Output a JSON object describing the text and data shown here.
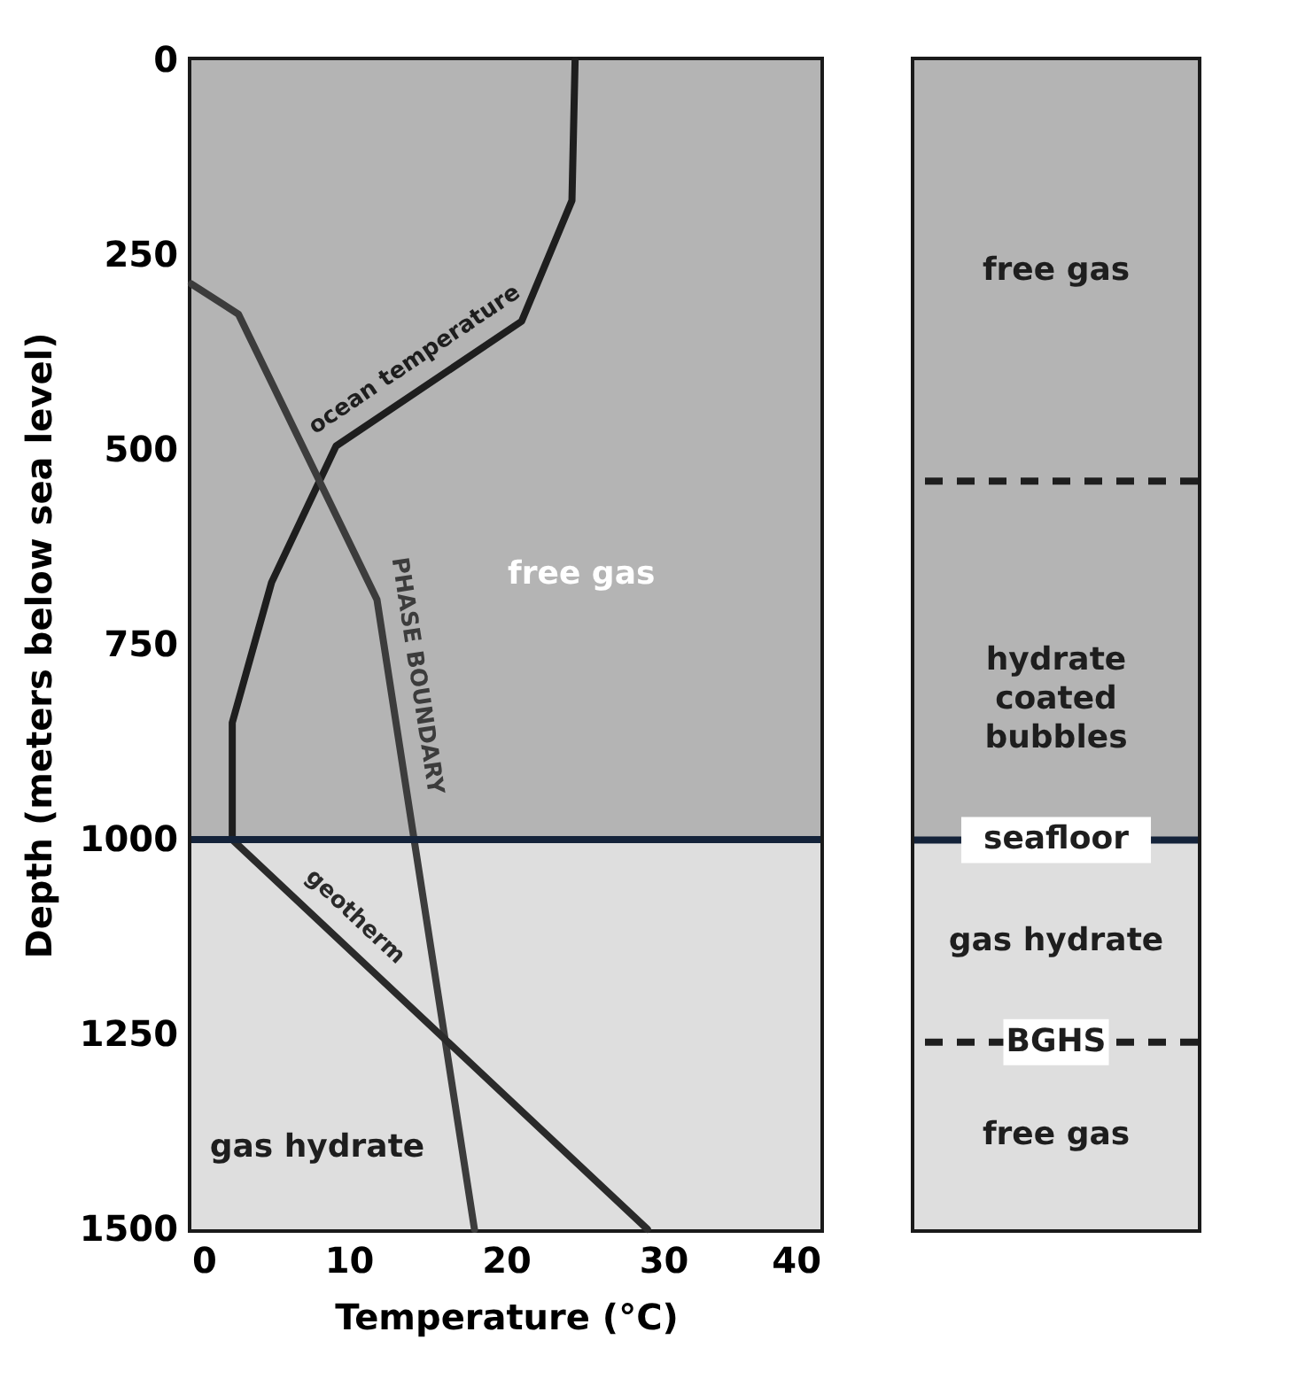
{
  "chart_data": [
    {
      "type": "line",
      "xlabel": "Temperature (°C)",
      "ylabel": "Depth (meters below sea level)",
      "xlim": [
        0,
        40
      ],
      "xticks": [
        0,
        10,
        20,
        30,
        40
      ],
      "ylim": [
        1500,
        0
      ],
      "yticks": [
        0,
        250,
        500,
        750,
        1000,
        1250,
        1500
      ],
      "series": [
        {
          "name": "ocean temperature",
          "color": "#1e1e1e",
          "x": [
            24.4,
            24.2,
            21,
            9.2,
            5.1,
            2.6,
            2.6
          ],
          "values": [
            0,
            180,
            335,
            495,
            670,
            850,
            1000
          ]
        },
        {
          "name": "PHASE BOUNDARY",
          "color": "#3c3c3c",
          "x": [
            0,
            3,
            11.8,
            18
          ],
          "values": [
            287,
            326,
            692,
            1500
          ]
        },
        {
          "name": "geotherm",
          "color": "#2a2a2a",
          "x": [
            2.6,
            29
          ],
          "values": [
            1000,
            1500
          ]
        }
      ],
      "bands": [
        {
          "axis": "y",
          "from": 0,
          "to": 1000,
          "color": "#b4b4b4"
        },
        {
          "axis": "y",
          "from": 1000,
          "to": 1500,
          "color": "#dedede"
        }
      ],
      "ref_lines": [
        {
          "axis": "y",
          "value": 1000,
          "color": "#14233a"
        }
      ],
      "annotations": [
        "free gas",
        "gas hydrate"
      ]
    },
    {
      "type": "other",
      "annotations": [
        "free gas",
        "hydrate coated bubbles",
        "seafloor",
        "gas hydrate",
        "BGHS",
        "free gas"
      ]
    }
  ]
}
